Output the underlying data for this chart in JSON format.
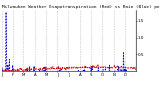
{
  "title": "Milwaukee Weather Evapotranspiration (Red) vs Rain (Blue) per Day (Inches)",
  "title_fontsize": 3.2,
  "background_color": "#ffffff",
  "et_color": "#cc0000",
  "rain_color": "#0000cc",
  "grid_color": "#888888",
  "n_days": 365,
  "ylim": [
    0,
    1.8
  ],
  "yticks": [
    0.5,
    1.0,
    1.5
  ],
  "ytick_fontsize": 3.0,
  "xtick_fontsize": 2.8,
  "month_labels": [
    "J",
    "F",
    "M",
    "A",
    "M",
    "J",
    "J",
    "A",
    "S",
    "O",
    "N",
    "D"
  ],
  "month_positions": [
    0,
    31,
    59,
    90,
    120,
    151,
    181,
    212,
    243,
    273,
    304,
    334
  ],
  "rain_spike_day": 12,
  "rain_spike_val": 1.75,
  "rain_spike2_day": 13,
  "rain_spike2_val": 0.85,
  "late_spike_day": 330,
  "late_spike_val": 0.55
}
